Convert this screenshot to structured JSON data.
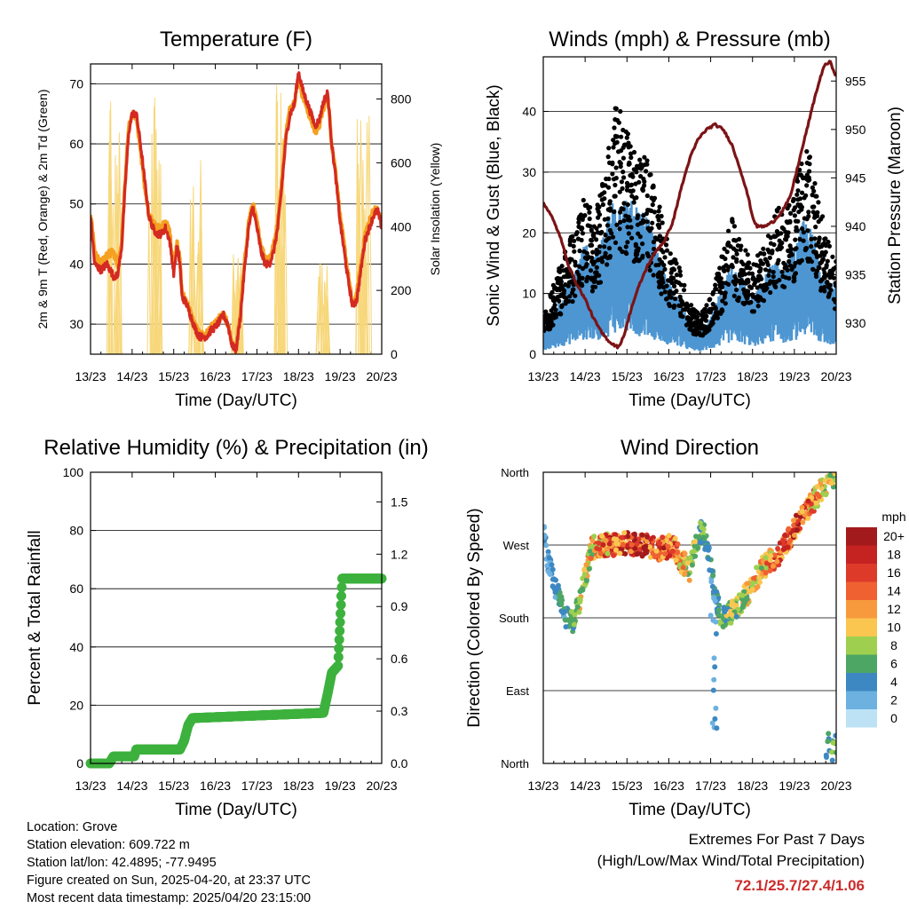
{
  "chart_data": [
    {
      "id": "temp",
      "type": "line",
      "title": "Temperature (F)",
      "xlabel": "Time (Day/UTC)",
      "ylabel": "2m & 9m T (Red, Orange) & 2m Td (Green)",
      "ylabel_right": "Solar Insolation (Yellow)",
      "x_ticks": [
        "13/23",
        "14/23",
        "15/23",
        "16/23",
        "17/23",
        "18/23",
        "19/23",
        "20/23"
      ],
      "y_ticks": [
        30,
        40,
        50,
        60,
        70
      ],
      "ylim": [
        25,
        73.3
      ],
      "y_right_ticks": [
        0,
        200,
        400,
        600,
        800
      ],
      "y_right_lim": [
        0,
        910
      ],
      "series": [
        {
          "color": "#f5a020",
          "x": [
            0,
            0.1,
            0.25,
            0.4,
            0.55,
            0.65,
            0.75,
            0.85,
            0.92,
            1.0,
            1.1,
            1.2,
            1.3,
            1.4,
            1.5,
            1.6,
            1.7,
            1.8,
            1.9,
            2.0,
            2.08,
            2.15,
            2.2,
            2.3,
            2.4,
            2.5,
            2.6,
            2.7,
            2.8,
            2.9,
            3.0,
            3.1,
            3.2,
            3.3,
            3.4,
            3.5,
            3.6,
            3.7,
            3.8,
            3.9,
            4.0,
            4.1,
            4.2,
            4.3,
            4.4,
            4.5,
            4.6,
            4.7,
            4.8,
            4.9,
            5.0,
            5.1,
            5.2,
            5.3,
            5.4,
            5.5,
            5.6,
            5.7,
            5.8,
            5.9,
            6.0,
            6.1,
            6.2,
            6.3,
            6.4,
            6.5,
            6.6,
            6.7,
            6.8,
            6.9,
            7.0
          ],
          "values": [
            48.5,
            42,
            40,
            41.5,
            42,
            40,
            44,
            56,
            63,
            65,
            64.5,
            59,
            53,
            48,
            47,
            46,
            46,
            47,
            45.5,
            39,
            44,
            40.5,
            35,
            34,
            32,
            30,
            28.5,
            28.2,
            28.5,
            29.5,
            30,
            31,
            31.5,
            30,
            27,
            26,
            32,
            40,
            47,
            50,
            47,
            43,
            41,
            41,
            43,
            47,
            54,
            62,
            66,
            67,
            71,
            68,
            66,
            64,
            62,
            63,
            66,
            68,
            60,
            55,
            48,
            43,
            38,
            33,
            35,
            40,
            45,
            47,
            49,
            49,
            47
          ]
        },
        {
          "color": "#d42a22",
          "x": [
            0,
            0.1,
            0.25,
            0.4,
            0.55,
            0.65,
            0.75,
            0.85,
            0.92,
            1.0,
            1.1,
            1.2,
            1.3,
            1.4,
            1.5,
            1.6,
            1.7,
            1.8,
            1.9,
            2.0,
            2.08,
            2.15,
            2.2,
            2.3,
            2.4,
            2.5,
            2.6,
            2.7,
            2.8,
            2.9,
            3.0,
            3.1,
            3.2,
            3.3,
            3.4,
            3.5,
            3.6,
            3.7,
            3.8,
            3.9,
            4.0,
            4.1,
            4.2,
            4.3,
            4.4,
            4.5,
            4.6,
            4.7,
            4.8,
            4.9,
            5.0,
            5.1,
            5.2,
            5.3,
            5.4,
            5.5,
            5.6,
            5.7,
            5.8,
            5.9,
            6.0,
            6.1,
            6.2,
            6.3,
            6.4,
            6.5,
            6.6,
            6.7,
            6.8,
            6.9,
            7.0
          ],
          "values": [
            48,
            40,
            39,
            40,
            38,
            38,
            43,
            55,
            62,
            65,
            65,
            60,
            54,
            48,
            46,
            45,
            45,
            46,
            44,
            38.5,
            43,
            40,
            34.5,
            33.5,
            31.5,
            29.5,
            28,
            27.8,
            28,
            29,
            29.5,
            30.5,
            31.5,
            30,
            26.5,
            25.7,
            31,
            39,
            46,
            49.5,
            46,
            42,
            40,
            40,
            42,
            46,
            53,
            61,
            65,
            66.5,
            72,
            69,
            67,
            65,
            63,
            64,
            67,
            68.5,
            60,
            54,
            47,
            42,
            37,
            33,
            34,
            39,
            44,
            46,
            48,
            49,
            46
          ]
        },
        {
          "color": "#f7d77a",
          "kind": "insolation",
          "days": [
            0,
            1,
            2,
            3,
            4,
            5,
            6
          ],
          "peaks": [
            840,
            900,
            610,
            320,
            860,
            300,
            870
          ]
        }
      ]
    },
    {
      "id": "wind",
      "type": "scatter",
      "title": "Winds (mph) & Pressure (mb)",
      "xlabel": "Time (Day/UTC)",
      "ylabel": "Sonic Wind & Gust (Blue, Black)",
      "ylabel_right": "Station Pressure (Maroon)",
      "x_ticks": [
        "13/23",
        "14/23",
        "15/23",
        "16/23",
        "17/23",
        "18/23",
        "19/23",
        "20/23"
      ],
      "y_ticks": [
        0,
        10,
        20,
        30,
        40
      ],
      "ylim": [
        0,
        49
      ],
      "y_right_ticks": [
        930,
        935,
        940,
        945,
        950,
        955
      ],
      "y_right_lim": [
        926.8,
        957.5
      ],
      "wind_mean_envelope": {
        "x": [
          0,
          0.25,
          0.5,
          0.75,
          1.0,
          1.25,
          1.5,
          1.75,
          2.0,
          2.25,
          2.5,
          2.75,
          3.0,
          3.25,
          3.5,
          3.75,
          4.0,
          4.25,
          4.5,
          4.75,
          5.0,
          5.25,
          5.5,
          5.75,
          6.0,
          6.25,
          6.5,
          6.75,
          7.0
        ],
        "values": [
          3,
          6,
          9,
          12,
          16,
          14,
          18,
          24,
          22,
          20,
          19,
          14,
          10,
          8,
          4,
          3,
          5,
          9,
          13,
          11,
          8,
          10,
          14,
          12,
          15,
          19,
          16,
          11,
          9
        ]
      },
      "gust_envelope": {
        "x": [
          0,
          0.25,
          0.5,
          0.75,
          1.0,
          1.25,
          1.5,
          1.75,
          2.0,
          2.25,
          2.5,
          2.75,
          3.0,
          3.25,
          3.5,
          3.75,
          4.0,
          4.25,
          4.5,
          4.75,
          5.0,
          5.25,
          5.5,
          5.75,
          6.0,
          6.25,
          6.5,
          6.75,
          7.0
        ],
        "values": [
          6,
          11,
          16,
          20,
          25,
          22,
          30,
          40,
          35,
          33,
          31,
          24,
          17,
          14,
          8,
          6,
          9,
          15,
          22,
          18,
          14,
          17,
          24,
          22,
          26,
          34,
          28,
          19,
          15
        ]
      },
      "series": [
        {
          "name": "",
          "color": "#7b1416",
          "x": [
            0,
            0.2,
            0.4,
            0.6,
            0.8,
            1.0,
            1.2,
            1.4,
            1.6,
            1.8,
            1.95,
            2.1,
            2.3,
            2.5,
            2.7,
            2.9,
            3.1,
            3.3,
            3.5,
            3.7,
            3.9,
            4.1,
            4.3,
            4.5,
            4.7,
            4.9,
            5.0,
            5.1,
            5.3,
            5.5,
            5.7,
            5.9,
            6.1,
            6.3,
            6.5,
            6.7,
            6.85,
            7.0
          ],
          "values": [
            942.5,
            941,
            939,
            936,
            934,
            932.5,
            930.5,
            929,
            928,
            927.5,
            929,
            931.5,
            934,
            936,
            937.5,
            938.5,
            940.5,
            944,
            947,
            949,
            950,
            950.5,
            950,
            948.5,
            946,
            943,
            941,
            940,
            940,
            940.5,
            941.5,
            943,
            946.5,
            950,
            953.5,
            956.5,
            957,
            955.5
          ]
        }
      ]
    },
    {
      "id": "rh",
      "type": "scatter",
      "title": "Relative Humidity (%) & Precipitation (in)",
      "xlabel": "Time (Day/UTC)",
      "ylabel": "Percent & Total Rainfall",
      "x_ticks": [
        "13/23",
        "14/23",
        "15/23",
        "16/23",
        "17/23",
        "18/23",
        "19/23",
        "20/23"
      ],
      "y_ticks": [
        0,
        20,
        40,
        60,
        80,
        100
      ],
      "ylim": [
        0,
        100
      ],
      "y_right_ticks": [
        "0.0",
        "0.3",
        "0.6",
        "0.9",
        "1.2",
        "1.5"
      ],
      "y_right_lim": [
        0,
        1.67
      ],
      "series": [
        {
          "name": "",
          "color": "#3db13d",
          "x": [
            0,
            0.45,
            0.55,
            1.05,
            1.1,
            2.15,
            2.25,
            2.35,
            2.45,
            5.6,
            5.7,
            5.8,
            5.95,
            6.05,
            7.0
          ],
          "values": [
            0.0,
            0.0,
            0.04,
            0.04,
            0.08,
            0.08,
            0.13,
            0.22,
            0.26,
            0.29,
            0.4,
            0.52,
            0.56,
            1.06,
            1.06
          ]
        }
      ]
    },
    {
      "id": "dir",
      "type": "scatter",
      "title": "Wind Direction",
      "xlabel": "Time (Day/UTC)",
      "ylabel": "Direction (Colored By Speed)",
      "x_ticks": [
        "13/23",
        "14/23",
        "15/23",
        "16/23",
        "17/23",
        "18/23",
        "19/23",
        "20/23"
      ],
      "y_ticks": [
        "North",
        "East",
        "South",
        "West",
        "North"
      ],
      "ylim": [
        0,
        360
      ],
      "colorbar": {
        "title": "mph",
        "labels": [
          "20+",
          "18",
          "16",
          "14",
          "12",
          "10",
          "8",
          "6",
          "4",
          "2",
          "0"
        ],
        "colors": [
          "#a31a1c",
          "#c52222",
          "#dd3a2a",
          "#ef6131",
          "#f79a3e",
          "#fbc64f",
          "#9ecf4e",
          "#4ea664",
          "#3d88c2",
          "#6cb1e0",
          "#bde2f6"
        ]
      },
      "direction_trace": {
        "x": [
          0,
          0.1,
          0.25,
          0.4,
          0.55,
          0.7,
          0.85,
          1.0,
          1.15,
          1.3,
          1.6,
          2.0,
          2.4,
          2.8,
          3.1,
          3.3,
          3.5,
          3.65,
          3.8,
          3.95,
          4.1,
          4.25,
          4.4,
          4.6,
          4.8,
          5.0,
          5.2,
          5.4,
          5.6,
          5.8,
          6.0,
          6.2,
          6.4,
          6.6,
          6.8,
          6.95
        ],
        "values": [
          290,
          255,
          225,
          200,
          180,
          175,
          195,
          230,
          265,
          270,
          270,
          272,
          270,
          265,
          270,
          250,
          240,
          275,
          290,
          260,
          210,
          180,
          185,
          190,
          205,
          220,
          240,
          250,
          255,
          270,
          290,
          305,
          320,
          335,
          350,
          355
        ]
      },
      "speed_profile": {
        "x": [
          0,
          0.5,
          1.0,
          1.5,
          2.0,
          2.5,
          3.0,
          3.5,
          4.0,
          4.5,
          5.0,
          5.5,
          6.0,
          6.5,
          7.0
        ],
        "values": [
          3,
          6,
          11,
          15,
          19,
          18,
          16,
          10,
          5,
          9,
          11,
          14,
          18,
          13,
          9
        ]
      }
    }
  ],
  "info": {
    "location": "Location: Grove",
    "elevation": "Station elevation: 609.722 m",
    "latlon": "Station lat/lon: 42.4895; -77.9495",
    "created": "Figure created on Sun, 2025-04-20, at 23:37 UTC",
    "recent": "Most recent data timestamp: 2025/04/20 23:15:00"
  },
  "extremes": {
    "title": "Extremes For Past 7 Days",
    "subtitle": "(High/Low/Max Wind/Total Precipitation)",
    "values": "72.1/25.7/27.4/1.06"
  }
}
